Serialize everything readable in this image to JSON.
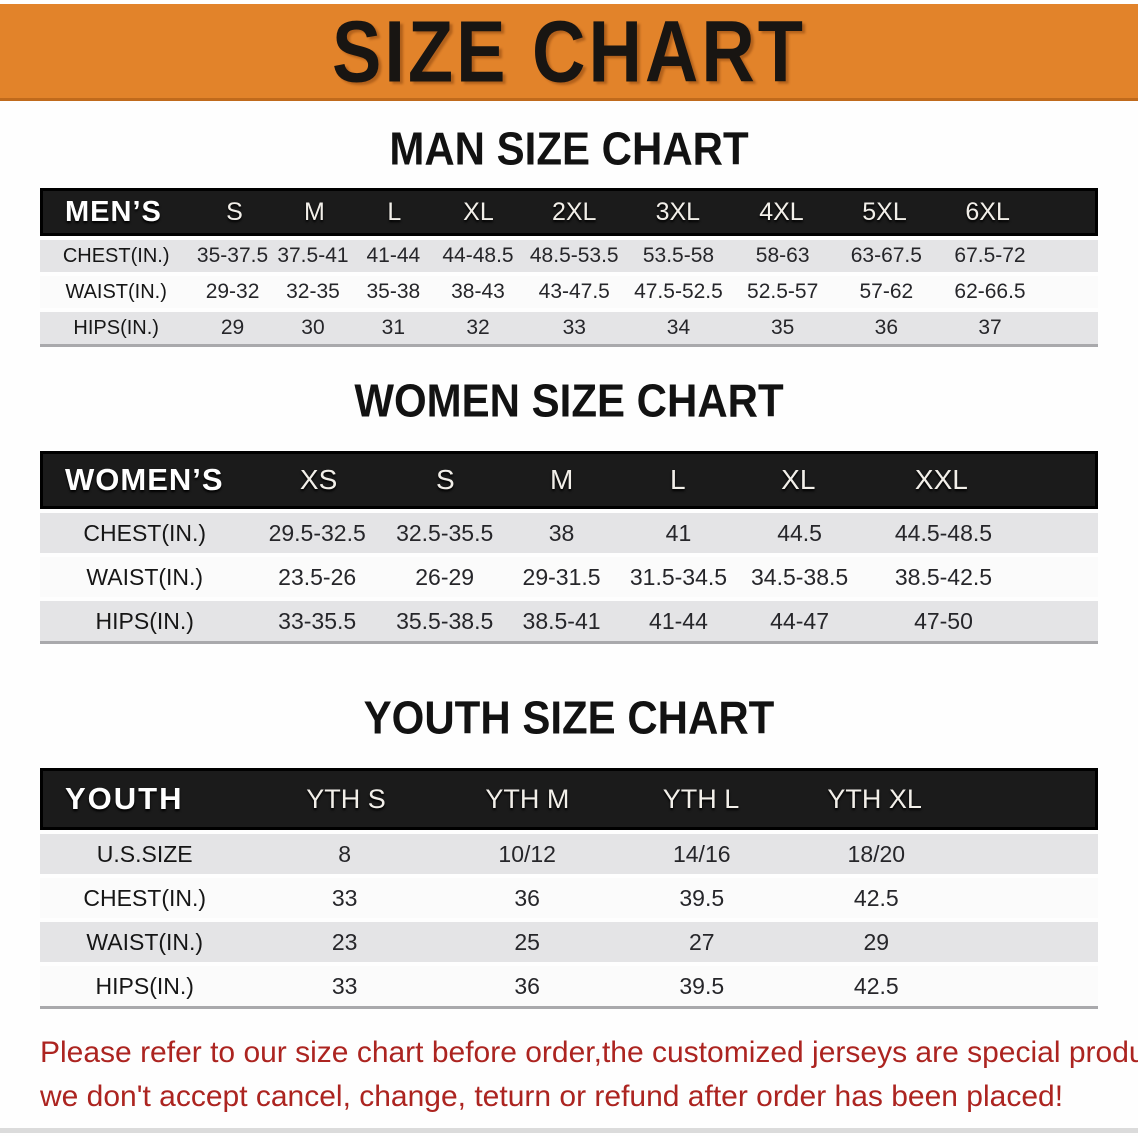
{
  "banner": {
    "title": "SIZE CHART"
  },
  "colors": {
    "banner_bg": "#E2832A",
    "header_bg": "#1B1B1B",
    "row_gray": "#E4E4E6",
    "row_white": "#FBFBFB",
    "footer_red": "#AC2420"
  },
  "sections": [
    {
      "id": "men",
      "title": "MAN SIZE CHART",
      "table": {
        "corner_label": "MEN’S",
        "sizes": [
          "S",
          "M",
          "L",
          "XL",
          "2XL",
          "3XL",
          "4XL",
          "5XL",
          "6XL"
        ],
        "rows": [
          {
            "label": "CHEST(IN.)",
            "values": [
              "35-37.5",
              "37.5-41",
              "41-44",
              "44-48.5",
              "48.5-53.5",
              "53.5-58",
              "58-63",
              "63-67.5",
              "67.5-72"
            ]
          },
          {
            "label": "WAIST(IN.)",
            "values": [
              "29-32",
              "32-35",
              "35-38",
              "38-43",
              "43-47.5",
              "47.5-52.5",
              "52.5-57",
              "57-62",
              "62-66.5"
            ]
          },
          {
            "label": "HIPS(IN.)",
            "values": [
              "29",
              "30",
              "31",
              "32",
              "33",
              "34",
              "35",
              "36",
              "37"
            ]
          }
        ]
      }
    },
    {
      "id": "women",
      "title": "WOMEN SIZE CHART",
      "table": {
        "corner_label": "WOMEN’S",
        "sizes": [
          "XS",
          "S",
          "M",
          "L",
          "XL",
          "XXL"
        ],
        "rows": [
          {
            "label": "CHEST(IN.)",
            "values": [
              "29.5-32.5",
              "32.5-35.5",
              "38",
              "41",
              "44.5",
              "44.5-48.5"
            ]
          },
          {
            "label": "WAIST(IN.)",
            "values": [
              "23.5-26",
              "26-29",
              "29-31.5",
              "31.5-34.5",
              "34.5-38.5",
              "38.5-42.5"
            ]
          },
          {
            "label": "HIPS(IN.)",
            "values": [
              "33-35.5",
              "35.5-38.5",
              "38.5-41",
              "41-44",
              "44-47",
              "47-50"
            ]
          }
        ]
      }
    },
    {
      "id": "youth",
      "title": "YOUTH SIZE CHART",
      "table": {
        "corner_label": "YOUTH",
        "sizes": [
          "YTH S",
          "YTH M",
          "YTH L",
          "YTH XL"
        ],
        "rows": [
          {
            "label": "U.S.SIZE",
            "values": [
              "8",
              "10/12",
              "14/16",
              "18/20"
            ]
          },
          {
            "label": "CHEST(IN.)",
            "values": [
              "33",
              "36",
              "39.5",
              "42.5"
            ]
          },
          {
            "label": "WAIST(IN.)",
            "values": [
              "23",
              "25",
              "27",
              "29"
            ]
          },
          {
            "label": "HIPS(IN.)",
            "values": [
              "33",
              "36",
              "39.5",
              "42.5"
            ]
          }
        ]
      }
    }
  ],
  "footer": {
    "line1": "Please refer to our size chart before order,the customized jerseys are special products,",
    "line2": "we don't accept cancel, change, teturn or refund after order has been placed!"
  }
}
